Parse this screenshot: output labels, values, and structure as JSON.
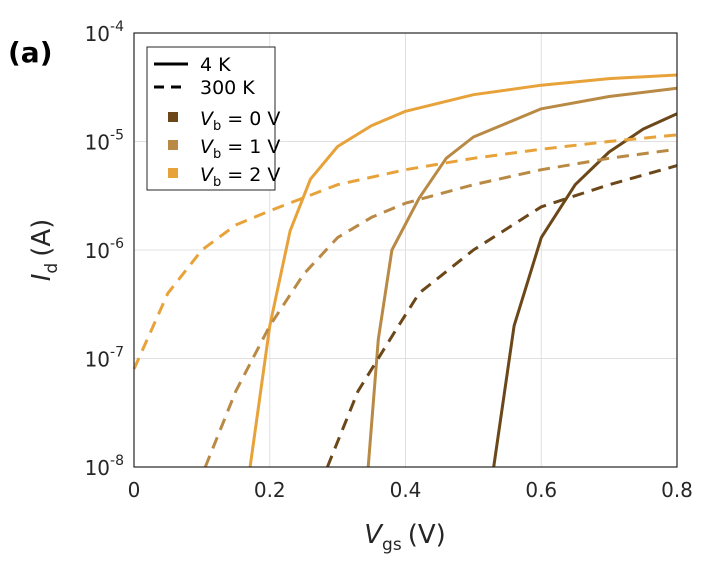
{
  "chart_data": {
    "type": "line",
    "panel_label": "(a)",
    "xlabel_main": "V",
    "xlabel_sub": "gs",
    "xlabel_unit": "(V)",
    "ylabel_main": "I",
    "ylabel_sub": "d",
    "ylabel_unit": "(A)",
    "xlim": [
      0,
      0.8
    ],
    "ylim": [
      1e-08,
      0.0001
    ],
    "yscale": "log",
    "grid": true,
    "legend_placement": "top-left",
    "xticks": [
      "0",
      "0.2",
      "0.4",
      "0.6",
      "0.8"
    ],
    "yticks": [
      {
        "base": "10",
        "exp": "-8"
      },
      {
        "base": "10",
        "exp": "-7"
      },
      {
        "base": "10",
        "exp": "-6"
      },
      {
        "base": "10",
        "exp": "-5"
      },
      {
        "base": "10",
        "exp": "-4"
      }
    ],
    "legend": {
      "styles": [
        {
          "label": "4 K",
          "dash": "solid"
        },
        {
          "label": "300 K",
          "dash": "dashed"
        }
      ],
      "colors": [
        {
          "pre": "V",
          "sub": "b",
          "post": " = 0 V",
          "color": "#6b4719"
        },
        {
          "pre": "V",
          "sub": "b",
          "post": " = 1 V",
          "color": "#b98a45"
        },
        {
          "pre": "V",
          "sub": "b",
          "post": " = 2 V",
          "color": "#e8a23a"
        }
      ]
    },
    "series": [
      {
        "name": "Vb=0 V, 4 K",
        "color": "#6b4719",
        "dash": "solid",
        "points": [
          [
            0.53,
            1e-08
          ],
          [
            0.56,
            2e-07
          ],
          [
            0.6,
            1.3e-06
          ],
          [
            0.65,
            4e-06
          ],
          [
            0.7,
            8e-06
          ],
          [
            0.75,
            1.3e-05
          ],
          [
            0.8,
            1.8e-05
          ]
        ]
      },
      {
        "name": "Vb=1 V, 4 K",
        "color": "#b98a45",
        "dash": "solid",
        "points": [
          [
            0.345,
            1e-08
          ],
          [
            0.36,
            1.5e-07
          ],
          [
            0.38,
            1e-06
          ],
          [
            0.42,
            3e-06
          ],
          [
            0.46,
            7e-06
          ],
          [
            0.5,
            1.1e-05
          ],
          [
            0.6,
            2e-05
          ],
          [
            0.7,
            2.6e-05
          ],
          [
            0.8,
            3.1e-05
          ]
        ]
      },
      {
        "name": "Vb=2 V, 4 K",
        "color": "#e8a23a",
        "dash": "solid",
        "points": [
          [
            0.171,
            1e-08
          ],
          [
            0.2,
            2e-07
          ],
          [
            0.23,
            1.5e-06
          ],
          [
            0.26,
            4.5e-06
          ],
          [
            0.3,
            9e-06
          ],
          [
            0.35,
            1.4e-05
          ],
          [
            0.4,
            1.9e-05
          ],
          [
            0.5,
            2.7e-05
          ],
          [
            0.6,
            3.3e-05
          ],
          [
            0.7,
            3.8e-05
          ],
          [
            0.8,
            4.1e-05
          ]
        ]
      },
      {
        "name": "Vb=0 V, 300 K",
        "color": "#6b4719",
        "dash": "dashed",
        "points": [
          [
            0.285,
            1e-08
          ],
          [
            0.33,
            5e-08
          ],
          [
            0.38,
            1.6e-07
          ],
          [
            0.42,
            4e-07
          ],
          [
            0.5,
            1e-06
          ],
          [
            0.6,
            2.5e-06
          ],
          [
            0.7,
            4e-06
          ],
          [
            0.8,
            6e-06
          ]
        ]
      },
      {
        "name": "Vb=1 V, 300 K",
        "color": "#b98a45",
        "dash": "dashed",
        "points": [
          [
            0.105,
            1e-08
          ],
          [
            0.15,
            5e-08
          ],
          [
            0.2,
            2e-07
          ],
          [
            0.25,
            6e-07
          ],
          [
            0.3,
            1.3e-06
          ],
          [
            0.35,
            2e-06
          ],
          [
            0.4,
            2.7e-06
          ],
          [
            0.5,
            4e-06
          ],
          [
            0.6,
            5.5e-06
          ],
          [
            0.7,
            7e-06
          ],
          [
            0.8,
            8.5e-06
          ]
        ]
      },
      {
        "name": "Vb=2 V, 300 K",
        "color": "#e8a23a",
        "dash": "dashed",
        "points": [
          [
            0,
            8e-08
          ],
          [
            0.05,
            4e-07
          ],
          [
            0.1,
            1e-06
          ],
          [
            0.15,
            1.7e-06
          ],
          [
            0.2,
            2.3e-06
          ],
          [
            0.3,
            4e-06
          ],
          [
            0.4,
            5.5e-06
          ],
          [
            0.5,
            7e-06
          ],
          [
            0.6,
            8.5e-06
          ],
          [
            0.7,
            1e-05
          ],
          [
            0.8,
            1.15e-05
          ]
        ]
      }
    ]
  }
}
